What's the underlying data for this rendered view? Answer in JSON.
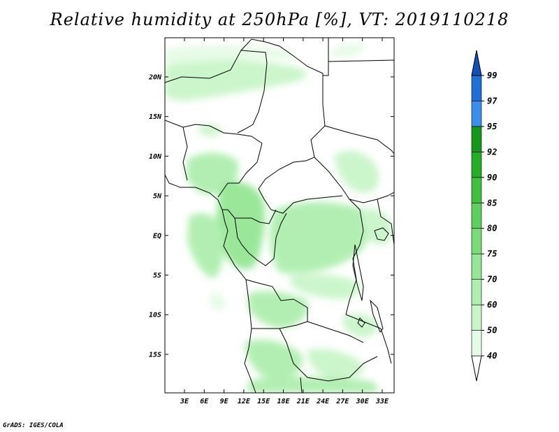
{
  "title": "Relative humidity at 250hPa [%], VT: 2019110218",
  "credit": "GrADS: IGES/COLA",
  "map": {
    "lat_labels": [
      "20N",
      "15N",
      "10N",
      "5N",
      "EQ",
      "5S",
      "10S",
      "15S"
    ],
    "lon_labels": [
      "3E",
      "6E",
      "9E",
      "12E",
      "15E",
      "18E",
      "21E",
      "24E",
      "27E",
      "30E",
      "33E"
    ]
  },
  "colorbar": {
    "levels": [
      "40",
      "50",
      "60",
      "70",
      "75",
      "80",
      "85",
      "90",
      "92",
      "95",
      "97",
      "99"
    ],
    "colors": [
      "#ffffff",
      "#e6fbe6",
      "#c9f5c9",
      "#aeeeae",
      "#95e695",
      "#79dc79",
      "#5ccf5c",
      "#3fc13f",
      "#26ad26",
      "#14971a",
      "#3a8fe8",
      "#1f6fd6",
      "#1050b8"
    ]
  }
}
